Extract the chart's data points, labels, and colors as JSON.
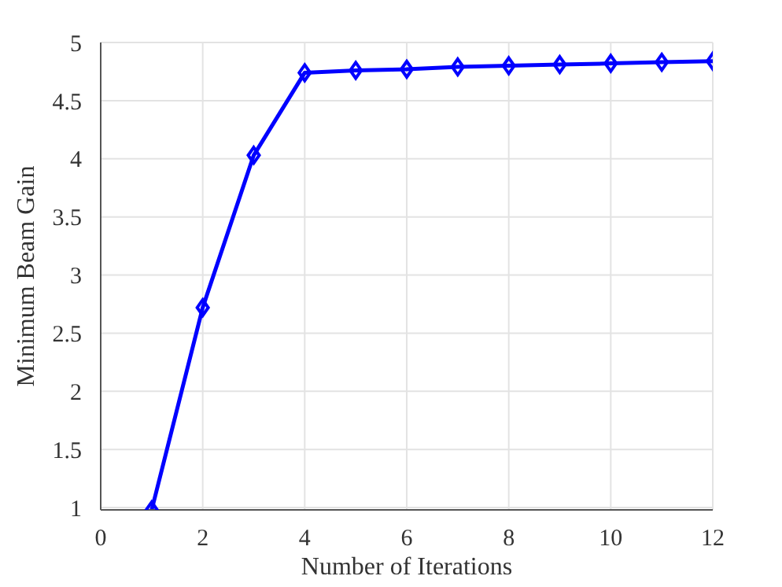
{
  "chart_data": {
    "type": "line",
    "xlabel": "Number of Iterations",
    "ylabel": "Minimum Beam Gain",
    "x": [
      1,
      2,
      3,
      4,
      5,
      6,
      7,
      8,
      9,
      10,
      11,
      12
    ],
    "series": [
      {
        "color": "#0000ff",
        "values": [
          0.98,
          2.72,
          4.03,
          4.74,
          4.76,
          4.77,
          4.79,
          4.8,
          4.81,
          4.82,
          4.83,
          4.84
        ]
      }
    ],
    "xlim": [
      0,
      12
    ],
    "xticks": [
      0,
      2,
      4,
      6,
      8,
      10,
      12
    ],
    "ylim": [
      0.98,
      5
    ],
    "yticks": [
      1,
      1.5,
      2,
      2.5,
      3,
      3.5,
      4,
      4.5,
      5
    ],
    "grid": true,
    "marker": "diamond",
    "line_style": "solid"
  }
}
